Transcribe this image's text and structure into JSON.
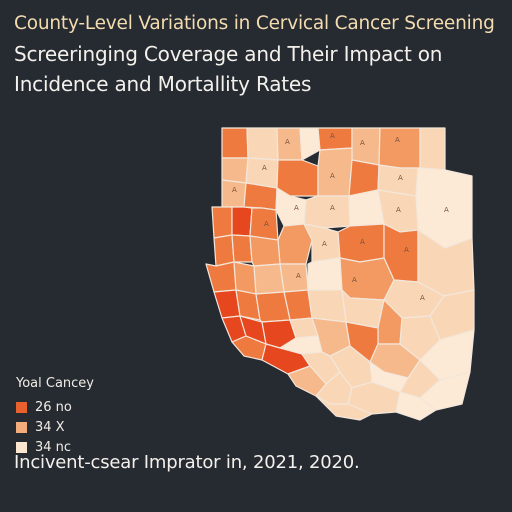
{
  "title": {
    "line1": "County-Level Variations in Cervical Cancer Screening",
    "line2": "Screeringing Coverage and Their Impact on",
    "line3": "Incidence and Mortallity Rates"
  },
  "legend": {
    "title": "Yoal Cancey",
    "items": [
      {
        "label": "26 no",
        "color": "#e9622d",
        "class": "high"
      },
      {
        "label": "34 X",
        "color": "#f3ad7d",
        "class": "mid"
      },
      {
        "label": "34 nc",
        "color": "#fbe6cf",
        "class": "low"
      }
    ]
  },
  "footer": "Incivent-csear Imprator in, 2021, 2020.",
  "map": {
    "class_colors": {
      "vhigh": "#e6471f",
      "high": "#ee7a40",
      "midhigh": "#f29a62",
      "mid": "#f5b98c",
      "low": "#f9d7b6",
      "vlow": "#fcead6"
    },
    "county_labels": [
      "A",
      "A",
      "A",
      "A",
      "A",
      "A",
      "A",
      "A",
      "A",
      "A",
      "A",
      "A",
      "A",
      "A",
      "A",
      "A",
      "A",
      "A",
      "A"
    ]
  }
}
